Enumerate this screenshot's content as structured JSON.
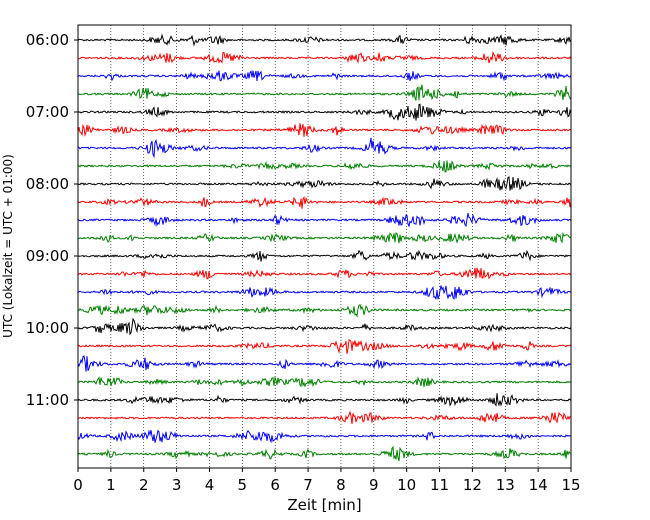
{
  "chart_data": {
    "type": "line",
    "title": "",
    "xlabel": "Zeit  [min]",
    "ylabel": "UTC (Lokalzeit = UTC + 01:00)",
    "xlim": [
      0,
      15
    ],
    "x_ticks": [
      0,
      1,
      2,
      3,
      4,
      5,
      6,
      7,
      8,
      9,
      10,
      11,
      12,
      13,
      14,
      15
    ],
    "y_tick_labels": [
      "06:00",
      "07:00",
      "08:00",
      "09:00",
      "10:00",
      "11:00"
    ],
    "trace_start_times": [
      "06:00",
      "06:15",
      "06:30",
      "06:45",
      "07:00",
      "07:15",
      "07:30",
      "07:45",
      "08:00",
      "08:15",
      "08:30",
      "08:45",
      "09:00",
      "09:15",
      "09:30",
      "09:45",
      "10:00",
      "10:15",
      "10:30",
      "10:45",
      "11:00",
      "11:15",
      "11:30",
      "11:45"
    ],
    "trace_colors": [
      "#000000",
      "#ff0000",
      "#0000ff",
      "#008000"
    ],
    "grid": "vertical dotted",
    "legend": "none"
  }
}
